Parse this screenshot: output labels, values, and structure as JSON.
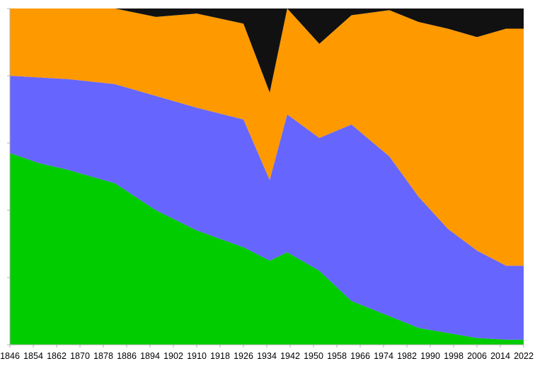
{
  "chart_data": {
    "type": "area",
    "stacked": true,
    "normalized": true,
    "title": "",
    "xlabel": "",
    "ylabel": "",
    "xlim": [
      1846,
      2022
    ],
    "ylim": [
      0,
      100
    ],
    "grid": false,
    "legend": "none",
    "x_ticks": [
      1846,
      1854,
      1862,
      1870,
      1878,
      1886,
      1894,
      1902,
      1910,
      1918,
      1926,
      1934,
      1942,
      1950,
      1958,
      1966,
      1974,
      1982,
      1990,
      1998,
      2006,
      2014,
      2022
    ],
    "series": [
      {
        "color": "#00cc00",
        "x": [
          1846,
          1856,
          1866,
          1882,
          1896,
          1910,
          1926,
          1935,
          1941,
          1952,
          1963,
          1976,
          1986,
          1996,
          2006,
          2016,
          2022
        ],
        "values": [
          57,
          54,
          52,
          48,
          40,
          34,
          29,
          25,
          27.5,
          22,
          13,
          8.5,
          5,
          3.5,
          2,
          1.5,
          1.5
        ]
      },
      {
        "color": "#6666ff",
        "x": [
          1846,
          1856,
          1866,
          1882,
          1896,
          1910,
          1926,
          1935,
          1941,
          1952,
          1963,
          1976,
          1986,
          1996,
          2006,
          2016,
          2022
        ],
        "values": [
          23,
          25.5,
          27,
          29.5,
          34,
          36.5,
          38,
          24,
          41,
          39.5,
          52.5,
          47.5,
          39,
          31,
          26,
          22,
          22
        ]
      },
      {
        "color": "#ff9900",
        "x": [
          1846,
          1856,
          1866,
          1882,
          1896,
          1910,
          1926,
          1935,
          1941,
          1952,
          1963,
          1976,
          1986,
          1996,
          2006,
          2016,
          2022
        ],
        "values": [
          20,
          20.5,
          21,
          22.5,
          23.5,
          28,
          28.5,
          26,
          31.5,
          28,
          32.5,
          43.5,
          52,
          59.5,
          63.5,
          70.5,
          70.5
        ]
      },
      {
        "color": "#111111",
        "x": [
          1846,
          1856,
          1866,
          1882,
          1896,
          1910,
          1926,
          1935,
          1941,
          1952,
          1963,
          1976,
          1986,
          1996,
          2006,
          2016,
          2022
        ],
        "values": [
          0,
          0,
          0,
          0,
          2.5,
          1.5,
          4.5,
          25,
          0,
          10.5,
          2,
          0.5,
          4,
          6,
          8.5,
          6,
          6
        ]
      }
    ]
  }
}
